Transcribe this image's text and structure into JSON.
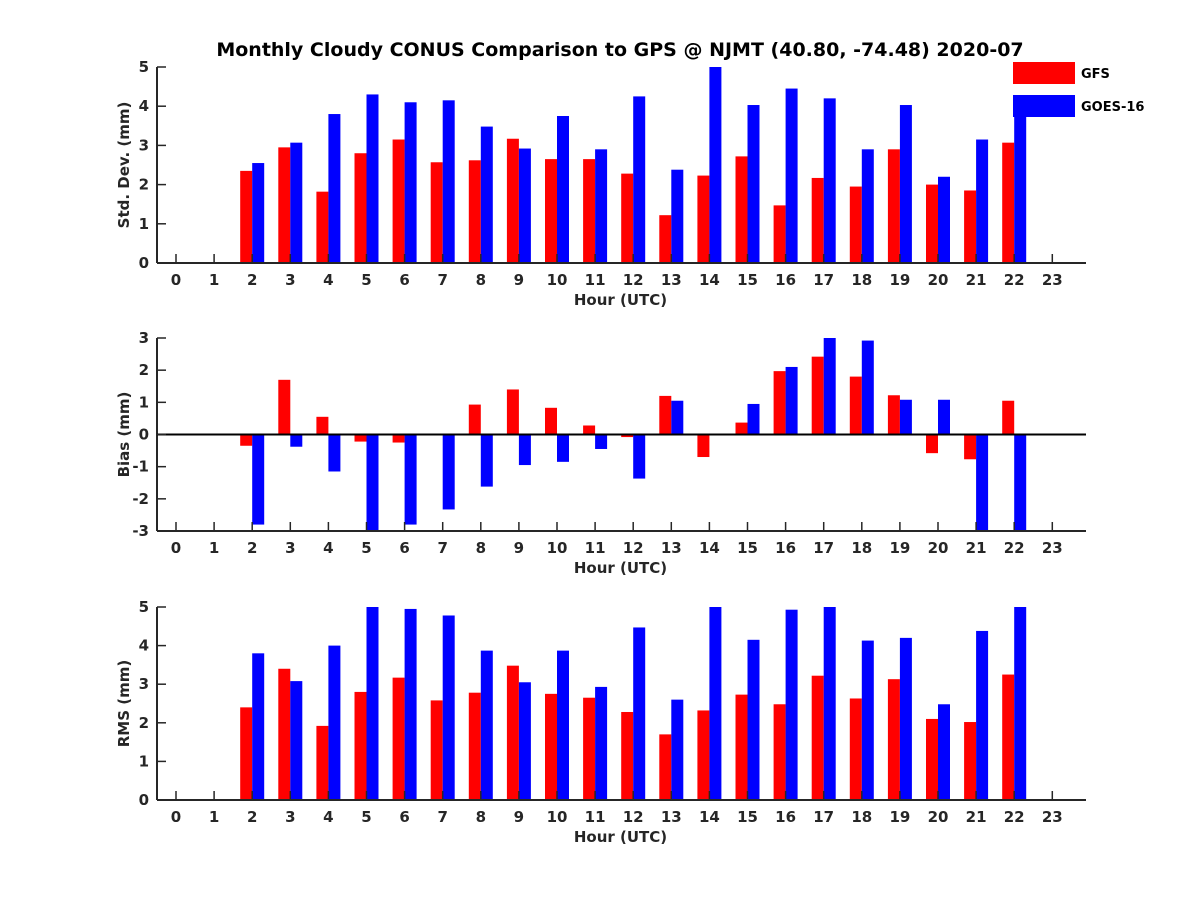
{
  "title": "Monthly Cloudy CONUS Comparison to GPS @ NJMT (40.80, -74.48) 2020-07",
  "legend": {
    "entries": [
      {
        "name": "GFS",
        "color": "#ff0000"
      },
      {
        "name": "GOES-16",
        "color": "#0000ff"
      }
    ],
    "placement": "top-right, outside upper plot"
  },
  "colors": {
    "gfs": "#ff0000",
    "goes": "#0000ff",
    "axis": "#262626"
  },
  "chart_data": [
    {
      "type": "bar",
      "id": "std",
      "xlabel": "Hour (UTC)",
      "ylabel": "Std. Dev. (mm)",
      "ylim": [
        0,
        5
      ],
      "yticks": [
        0,
        1,
        2,
        3,
        4,
        5
      ],
      "xticks": [
        "0",
        "1",
        "2",
        "3",
        "4",
        "5",
        "6",
        "7",
        "8",
        "9",
        "10",
        "11",
        "12",
        "13",
        "14",
        "15",
        "16",
        "17",
        "18",
        "19",
        "20",
        "21",
        "22",
        "23"
      ],
      "grid": false,
      "series": [
        {
          "name": "GFS",
          "color": "#ff0000",
          "values": [
            null,
            null,
            2.35,
            2.95,
            1.82,
            2.8,
            3.15,
            2.57,
            2.62,
            3.17,
            2.65,
            2.65,
            2.28,
            1.22,
            2.23,
            2.72,
            1.47,
            2.17,
            1.95,
            2.9,
            2.0,
            1.85,
            3.07,
            null
          ]
        },
        {
          "name": "GOES-16",
          "color": "#0000ff",
          "values": [
            null,
            null,
            2.55,
            3.07,
            3.8,
            4.3,
            4.1,
            4.15,
            3.48,
            2.92,
            3.75,
            2.9,
            4.25,
            2.38,
            5.0,
            4.03,
            4.45,
            4.2,
            2.9,
            4.03,
            2.2,
            3.15,
            3.97,
            null
          ]
        }
      ]
    },
    {
      "type": "bar",
      "id": "bias",
      "xlabel": "Hour (UTC)",
      "ylabel": "Bias (mm)",
      "ylim": [
        -3,
        3
      ],
      "yticks": [
        -3,
        -2,
        -1,
        0,
        1,
        2,
        3
      ],
      "xticks": [
        "0",
        "1",
        "2",
        "3",
        "4",
        "5",
        "6",
        "7",
        "8",
        "9",
        "10",
        "11",
        "12",
        "13",
        "14",
        "15",
        "16",
        "17",
        "18",
        "19",
        "20",
        "21",
        "22",
        "23"
      ],
      "grid": false,
      "zero_line": true,
      "series": [
        {
          "name": "GFS",
          "color": "#ff0000",
          "values": [
            null,
            null,
            -0.35,
            1.7,
            0.55,
            -0.22,
            -0.25,
            0.0,
            0.93,
            1.4,
            0.83,
            0.28,
            -0.08,
            1.2,
            -0.7,
            0.37,
            1.97,
            2.42,
            1.8,
            1.22,
            -0.58,
            -0.77,
            1.05,
            null
          ]
        },
        {
          "name": "GOES-16",
          "color": "#0000ff",
          "values": [
            null,
            null,
            -2.8,
            -0.38,
            -1.15,
            -3.0,
            -2.8,
            -2.33,
            -1.62,
            -0.95,
            -0.85,
            -0.45,
            -1.37,
            1.05,
            0.0,
            0.95,
            2.1,
            3.0,
            2.92,
            1.08,
            1.08,
            -3.0,
            -3.0,
            null
          ]
        }
      ]
    },
    {
      "type": "bar",
      "id": "rms",
      "xlabel": "Hour (UTC)",
      "ylabel": "RMS (mm)",
      "ylim": [
        0,
        5
      ],
      "yticks": [
        0,
        1,
        2,
        3,
        4,
        5
      ],
      "xticks": [
        "0",
        "1",
        "2",
        "3",
        "4",
        "5",
        "6",
        "7",
        "8",
        "9",
        "10",
        "11",
        "12",
        "13",
        "14",
        "15",
        "16",
        "17",
        "18",
        "19",
        "20",
        "21",
        "22",
        "23"
      ],
      "grid": false,
      "series": [
        {
          "name": "GFS",
          "color": "#ff0000",
          "values": [
            null,
            null,
            2.4,
            3.4,
            1.92,
            2.8,
            3.17,
            2.58,
            2.78,
            3.48,
            2.75,
            2.65,
            2.28,
            1.7,
            2.32,
            2.73,
            2.48,
            3.22,
            2.63,
            3.13,
            2.1,
            2.02,
            3.25,
            null
          ]
        },
        {
          "name": "GOES-16",
          "color": "#0000ff",
          "values": [
            null,
            null,
            3.8,
            3.08,
            4.0,
            5.0,
            4.95,
            4.78,
            3.87,
            3.05,
            3.87,
            2.93,
            4.47,
            2.6,
            5.0,
            4.15,
            4.93,
            5.0,
            4.13,
            4.2,
            2.48,
            4.38,
            5.0,
            null
          ]
        }
      ]
    }
  ]
}
